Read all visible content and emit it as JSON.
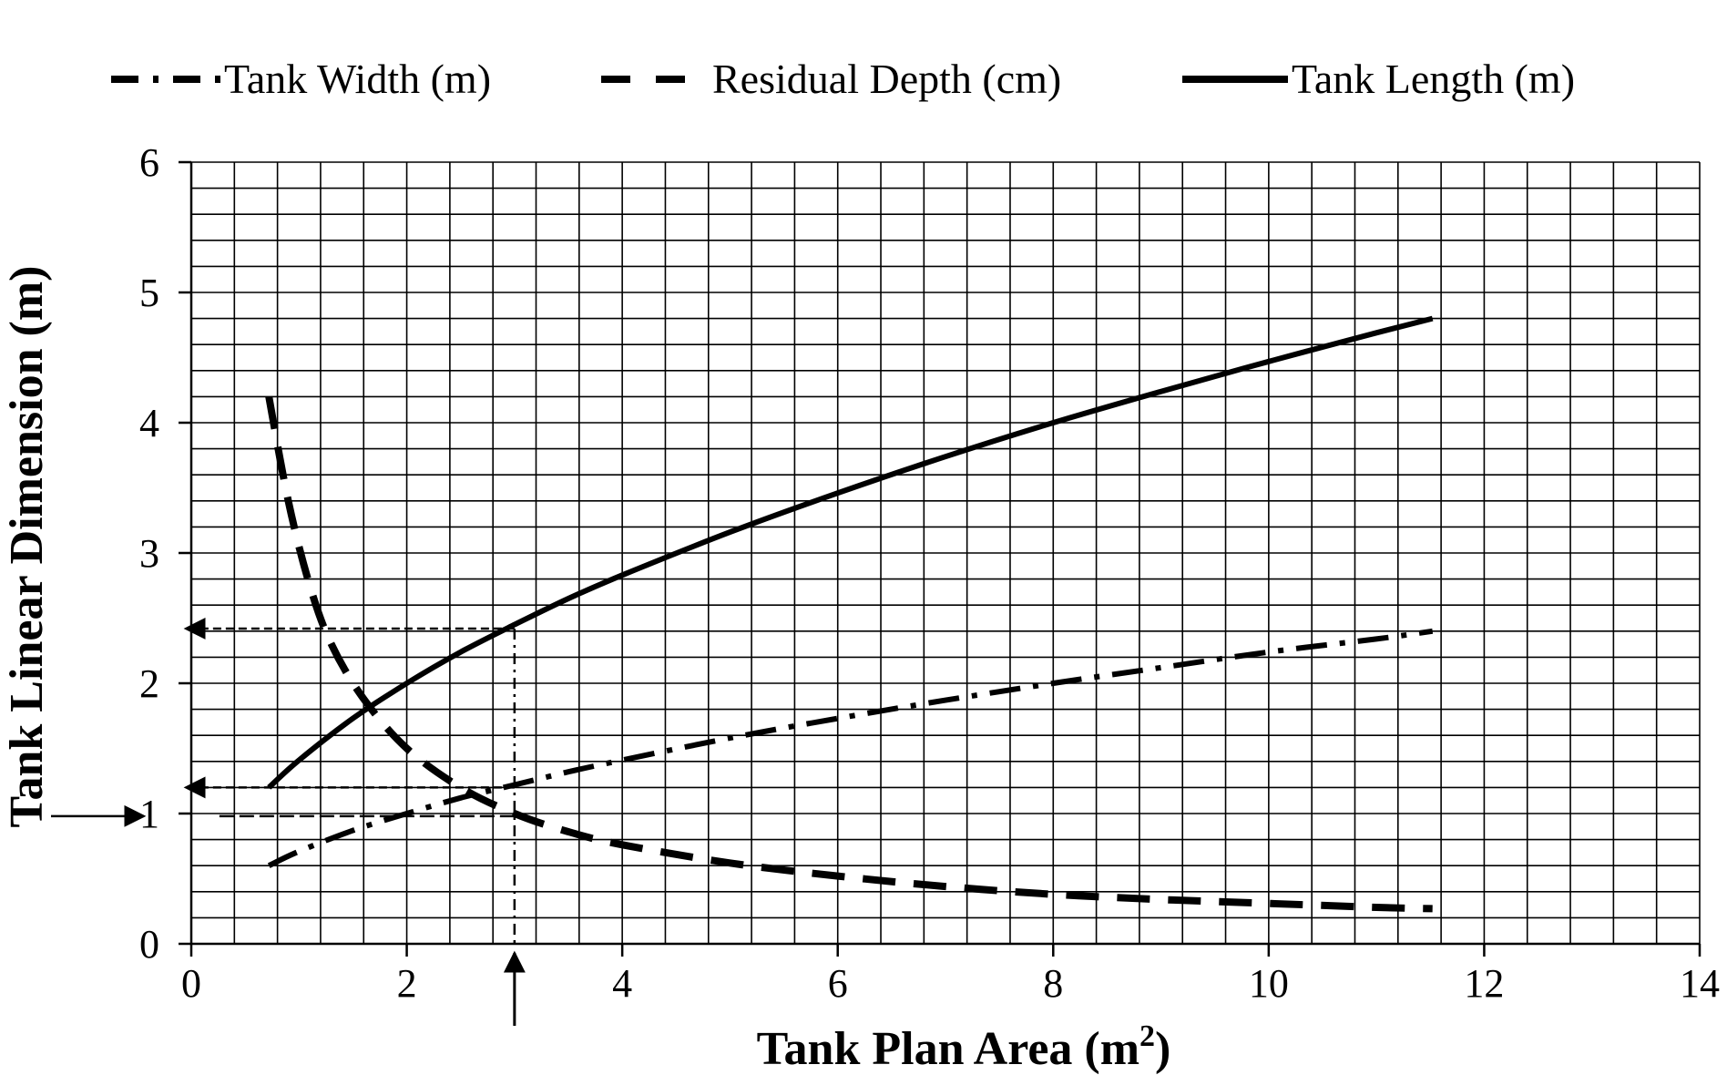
{
  "chart_data": {
    "type": "line",
    "title": "",
    "xlabel": "Tank Plan Area (m",
    "xlabel_sup": "2",
    "xlabel_close": ")",
    "ylabel": "Tank Linear Dimension (m)",
    "xlim": [
      0,
      14
    ],
    "ylim": [
      0,
      6
    ],
    "x_ticks": [
      "0",
      "2",
      "4",
      "6",
      "8",
      "10",
      "12",
      "14"
    ],
    "y_ticks": [
      "0",
      "1",
      "2",
      "3",
      "4",
      "5",
      "6"
    ],
    "x_minor_step": 0.4,
    "y_minor_step": 0.2,
    "grid": true,
    "legend_position": "top",
    "series": [
      {
        "name": "Tank Width (m)",
        "style": "dash-dot",
        "x": [
          0.72,
          1.0,
          1.5,
          2.0,
          2.5,
          3.0,
          3.5,
          4.0,
          5.0,
          6.0,
          7.0,
          8.0,
          9.0,
          10.0,
          11.0,
          11.52
        ],
        "y": [
          0.6,
          0.71,
          0.87,
          1.0,
          1.12,
          1.22,
          1.32,
          1.41,
          1.58,
          1.73,
          1.87,
          2.0,
          2.12,
          2.24,
          2.34,
          2.4
        ]
      },
      {
        "name": "Residual Depth (cm)",
        "style": "dashed",
        "x": [
          0.72,
          0.9,
          1.1,
          1.3,
          1.6,
          2.0,
          2.5,
          3.0,
          3.5,
          4.0,
          5.0,
          6.0,
          7.0,
          8.0,
          9.0,
          10.0,
          11.0,
          11.52
        ],
        "y": [
          4.2,
          3.4,
          2.75,
          2.3,
          1.88,
          1.5,
          1.2,
          1.0,
          0.86,
          0.76,
          0.62,
          0.52,
          0.44,
          0.38,
          0.34,
          0.31,
          0.28,
          0.27
        ]
      },
      {
        "name": "Tank Length (m)",
        "style": "solid",
        "x": [
          0.72,
          1.0,
          1.5,
          2.0,
          2.5,
          3.0,
          3.5,
          4.0,
          5.0,
          6.0,
          7.0,
          8.0,
          9.0,
          10.0,
          11.0,
          11.52
        ],
        "y": [
          1.2,
          1.41,
          1.73,
          2.0,
          2.24,
          2.45,
          2.65,
          2.83,
          3.16,
          3.46,
          3.74,
          4.0,
          4.24,
          4.47,
          4.69,
          4.8
        ]
      }
    ],
    "annotations": {
      "guide_x": 3.0,
      "guide_length_y": 2.42,
      "guide_width_y": 1.2,
      "guide_depth_y": 0.98
    }
  }
}
